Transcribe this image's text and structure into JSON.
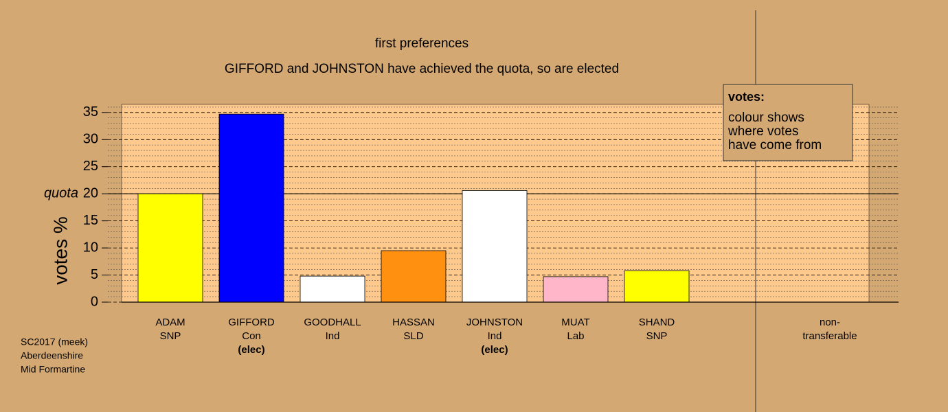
{
  "chart_data": {
    "type": "bar",
    "title": "first preferences",
    "subtitle": "GIFFORD and JOHNSTON have achieved the quota, so are elected",
    "y_label": "votes %",
    "categories": [
      "ADAM",
      "GIFFORD",
      "GOODHALL",
      "HASSAN",
      "JOHNSTON",
      "MUAT",
      "SHAND",
      "non-transferable"
    ],
    "parties": [
      "SNP",
      "Con",
      "Ind",
      "SLD",
      "Ind",
      "Lab",
      "SNP",
      null
    ],
    "notes": [
      null,
      "(elec)",
      null,
      null,
      "(elec)",
      null,
      null,
      null
    ],
    "values": [
      20.0,
      34.7,
      4.8,
      9.5,
      20.6,
      4.7,
      5.8,
      0
    ],
    "colors": [
      "#ffff00",
      "#0000ff",
      "#ffffff",
      "#ff9010",
      "#ffffff",
      "#ffb6c8",
      "#ffff00",
      "#ffffff"
    ],
    "ylim": [
      0,
      36.5
    ],
    "yticks": [
      0,
      5,
      10,
      15,
      20,
      25,
      30,
      35
    ],
    "minor_yticks": [
      1,
      2,
      3,
      4,
      6,
      7,
      8,
      9,
      11,
      12,
      13,
      14,
      16,
      17,
      18,
      19,
      21,
      22,
      23,
      24,
      26,
      27,
      28,
      29,
      31,
      32,
      33,
      34,
      36
    ],
    "grid": true,
    "quota": {
      "label": "quota",
      "value": 20
    },
    "legend": {
      "title": "votes:",
      "lines": [
        "colour shows",
        "where votes",
        "have come from"
      ]
    },
    "footer": [
      "SC2017 (meek)",
      "Aberdeenshire",
      "Mid Formartine"
    ]
  }
}
